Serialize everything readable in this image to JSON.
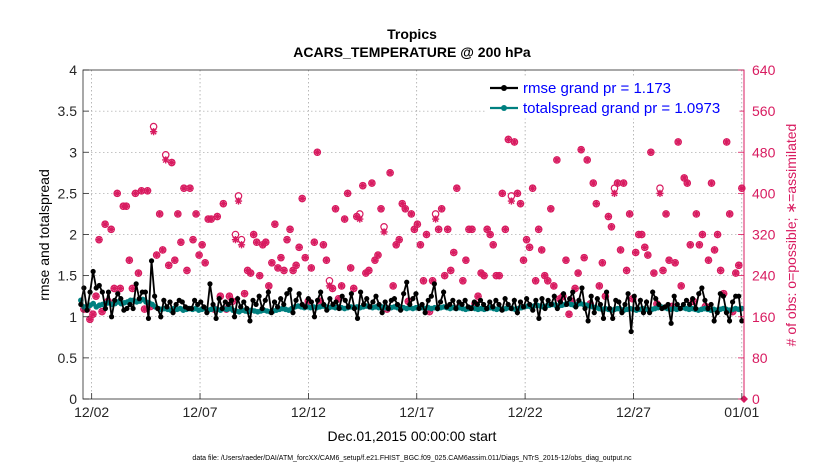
{
  "chart_data": {
    "type": "line",
    "title": "Tropics",
    "subtitle": "ACARS_TEMPERATURE @ 200 hPa",
    "xlabel": "Dec.01,2015 00:00:00 start",
    "ylabel": "rmse and totalspread",
    "y2label": "# of obs: o=possible; ∗=assimilated",
    "footer": "data file: /Users/raeder/DAI/ATM_forcXX/CAM6_setup/f.e21.FHIST_BGC.f09_025.CAM6assim.011/Diags_NTrS_2015-12/obs_diag_output.nc",
    "x_unit": "days since Dec.01,2015 00:00",
    "xlim": [
      0.6,
      31.1
    ],
    "ylim": [
      0,
      4
    ],
    "y2lim": [
      0,
      640
    ],
    "xticks": [
      1,
      6,
      11,
      16,
      21,
      26,
      31
    ],
    "xtick_labels": [
      "12/02",
      "12/07",
      "12/12",
      "12/17",
      "12/22",
      "12/27",
      "01/01"
    ],
    "yticks": [
      "0",
      "0.5",
      "1",
      "1.5",
      "2",
      "2.5",
      "3",
      "3.5",
      "4"
    ],
    "y2ticks": [
      "0",
      "80",
      "160",
      "240",
      "320",
      "400",
      "480",
      "560",
      "640"
    ],
    "legend_placement": "top-right",
    "legend": [
      "rmse grand pr = 1.173",
      "totalspread grand pr = 1.0973"
    ],
    "colors": {
      "rmse": "#000000",
      "spread": "#008080",
      "obs": "#d81b60",
      "axis2": "#d81b60"
    },
    "series_rmse": [
      1.15,
      1.35,
      1.08,
      1.3,
      1.55,
      1.35,
      1.38,
      1.3,
      1.1,
      1.3,
      1.0,
      1.2,
      1.28,
      1.22,
      1.08,
      1.1,
      1.15,
      1.1,
      1.4,
      1.22,
      1.3,
      1.3,
      0.98,
      1.68,
      1.25,
      1.1,
      1.0,
      1.2,
      1.12,
      1.18,
      1.05,
      1.15,
      1.2,
      1.18,
      1.12,
      1.1,
      1.1,
      1.2,
      1.15,
      1.18,
      1.12,
      1.05,
      1.4,
      1.15,
      0.98,
      1.22,
      1.1,
      1.18,
      1.15,
      1.2,
      1.0,
      1.22,
      1.12,
      1.18,
      1.1,
      0.95,
      1.2,
      1.15,
      1.25,
      1.1,
      1.2,
      1.3,
      1.05,
      1.18,
      1.12,
      1.22,
      1.15,
      1.28,
      1.33,
      1.05,
      1.2,
      1.28,
      1.15,
      1.12,
      1.22,
      1.18,
      1.0,
      1.2,
      1.3,
      1.15,
      1.08,
      1.22,
      1.15,
      1.18,
      1.1,
      1.25,
      1.2,
      1.12,
      1.28,
      1.1,
      0.98,
      1.3,
      1.15,
      1.22,
      1.12,
      1.18,
      1.25,
      1.15,
      1.05,
      1.18,
      1.1,
      1.2,
      1.22,
      1.15,
      1.08,
      1.28,
      1.42,
      1.15,
      1.22,
      1.28,
      1.1,
      1.15,
      1.05,
      1.2,
      1.25,
      1.4,
      1.1,
      1.18,
      1.3,
      1.12,
      1.15,
      1.2,
      1.1,
      1.18,
      1.15,
      1.2,
      1.12,
      1.1,
      1.18,
      1.15,
      1.2,
      1.15,
      1.1,
      1.18,
      1.12,
      1.2,
      1.15,
      1.08,
      1.22,
      1.15,
      1.1,
      1.2,
      1.05,
      1.18,
      1.12,
      1.22,
      1.15,
      1.08,
      1.2,
      0.98,
      1.22,
      1.1,
      1.2,
      1.15,
      1.25,
      1.1,
      1.18,
      1.28,
      1.15,
      1.22,
      1.3,
      1.12,
      1.2,
      1.35,
      1.1,
      0.95,
      1.25,
      1.05,
      1.22,
      1.15,
      0.98,
      1.3,
      1.1,
      0.98,
      1.2,
      1.18,
      1.05,
      1.15,
      1.28,
      0.82,
      1.25,
      1.1,
      1.2,
      1.05,
      1.18,
      1.05,
      1.3,
      1.22,
      1.15,
      1.1,
      1.12,
      1.15,
      0.92,
      1.25,
      1.15,
      1.1,
      1.15,
      1.2,
      1.15,
      1.22,
      1.1,
      1.28,
      1.35,
      1.2,
      1.1,
      1.15,
      0.95,
      1.05,
      1.28,
      1.25,
      1.05,
      0.95,
      1.18,
      1.25,
      1.25,
      0.95
    ],
    "series_spread": [
      1.2,
      1.12,
      1.1,
      1.14,
      1.16,
      1.12,
      1.14,
      1.15,
      1.16,
      1.17,
      1.15,
      1.16,
      1.18,
      1.16,
      1.17,
      1.18,
      1.2,
      1.2,
      1.18,
      1.19,
      1.21,
      1.18,
      1.17,
      1.15,
      1.12,
      1.1,
      1.09,
      1.1,
      1.09,
      1.08,
      1.1,
      1.09,
      1.1,
      1.08,
      1.09,
      1.1,
      1.09,
      1.1,
      1.08,
      1.09,
      1.1,
      1.08,
      1.09,
      1.1,
      1.09,
      1.08,
      1.1,
      1.09,
      1.1,
      1.08,
      1.07,
      1.06,
      1.08,
      1.07,
      1.06,
      1.08,
      1.07,
      1.06,
      1.07,
      1.08,
      1.07,
      1.06,
      1.07,
      1.08,
      1.09,
      1.1,
      1.09,
      1.08,
      1.1,
      1.12,
      1.13,
      1.12,
      1.11,
      1.12,
      1.11,
      1.12,
      1.11,
      1.12,
      1.13,
      1.12,
      1.11,
      1.12,
      1.11,
      1.12,
      1.11,
      1.1,
      1.11,
      1.12,
      1.11,
      1.12,
      1.11,
      1.12,
      1.13,
      1.12,
      1.11,
      1.12,
      1.11,
      1.12,
      1.11,
      1.1,
      1.11,
      1.12,
      1.11,
      1.12,
      1.11,
      1.1,
      1.11,
      1.1,
      1.11,
      1.12,
      1.11,
      1.1,
      1.11,
      1.1,
      1.11,
      1.1,
      1.11,
      1.12,
      1.11,
      1.1,
      1.11,
      1.1,
      1.11,
      1.1,
      1.09,
      1.1,
      1.11,
      1.1,
      1.09,
      1.1,
      1.09,
      1.1,
      1.11,
      1.1,
      1.09,
      1.1,
      1.09,
      1.1,
      1.11,
      1.1,
      1.09,
      1.1,
      1.11,
      1.12,
      1.13,
      1.12,
      1.13,
      1.14,
      1.13,
      1.12,
      1.13,
      1.14,
      1.15,
      1.14,
      1.13,
      1.14,
      1.15,
      1.16,
      1.15,
      1.14,
      1.15,
      1.16,
      1.15,
      1.14,
      1.13,
      1.12,
      1.11,
      1.1,
      1.09,
      1.1,
      1.09,
      1.08,
      1.09,
      1.1,
      1.09,
      1.08,
      1.09,
      1.1,
      1.09,
      1.08,
      1.09,
      1.1,
      1.09,
      1.08,
      1.09,
      1.1,
      1.11,
      1.12,
      1.11,
      1.1,
      1.09,
      1.1,
      1.09,
      1.1,
      1.11,
      1.1,
      1.09,
      1.1,
      1.09,
      1.08,
      1.09,
      1.1,
      1.09,
      1.08,
      1.09,
      1.08,
      1.09,
      1.1,
      1.09,
      1.08,
      1.09,
      1.1,
      1.09,
      1.1
    ],
    "obs_possible": [
      430,
      175,
      175,
      155,
      165,
      200,
      310,
      170,
      340,
      190,
      330,
      215,
      400,
      215,
      375,
      375,
      270,
      215,
      400,
      245,
      405,
      175,
      405,
      180,
      530,
      280,
      360,
      290,
      475,
      260,
      460,
      270,
      360,
      305,
      410,
      250,
      410,
      310,
      360,
      280,
      300,
      265,
      350,
      350,
      175,
      355,
      200,
      380,
      175,
      200,
      190,
      320,
      395,
      310,
      205,
      250,
      245,
      320,
      305,
      240,
      300,
      305,
      220,
      265,
      340,
      255,
      275,
      250,
      310,
      330,
      250,
      260,
      295,
      390,
      275,
      190,
      255,
      305,
      480,
      190,
      300,
      270,
      230,
      215,
      370,
      195,
      220,
      350,
      400,
      255,
      215,
      355,
      360,
      415,
      245,
      250,
      420,
      270,
      280,
      370,
      335,
      175,
      440,
      220,
      300,
      310,
      380,
      370,
      190,
      360,
      330,
      340,
      300,
      230,
      320,
      170,
      230,
      360,
      330,
      370,
      240,
      330,
      250,
      285,
      410,
      180,
      230,
      270,
      330,
      330,
      185,
      200,
      245,
      240,
      330,
      320,
      300,
      240,
      240,
      400,
      330,
      505,
      395,
      500,
      400,
      380,
      270,
      310,
      295,
      410,
      230,
      330,
      290,
      240,
      230,
      370,
      220,
      465,
      195,
      200,
      270,
      165,
      190,
      215,
      245,
      485,
      275,
      465,
      185,
      420,
      380,
      220,
      265,
      200,
      355,
      335,
      410,
      420,
      290,
      420,
      250,
      360,
      195,
      285,
      320,
      320,
      295,
      280,
      480,
      245,
      185,
      410,
      250,
      360,
      270,
      180,
      265,
      500,
      220,
      430,
      420,
      300,
      190,
      360,
      300,
      320,
      180,
      270,
      420,
      290,
      320,
      250,
      205,
      500,
      360,
      170,
      245,
      260,
      410
    ],
    "obs_assimilated": [
      430,
      175,
      175,
      155,
      165,
      200,
      310,
      170,
      340,
      190,
      330,
      215,
      400,
      215,
      375,
      375,
      270,
      215,
      400,
      245,
      405,
      175,
      405,
      180,
      520,
      280,
      360,
      290,
      465,
      260,
      460,
      270,
      360,
      305,
      410,
      250,
      410,
      310,
      360,
      280,
      300,
      265,
      350,
      350,
      175,
      355,
      200,
      380,
      175,
      200,
      190,
      310,
      385,
      300,
      205,
      250,
      245,
      320,
      305,
      240,
      300,
      305,
      220,
      265,
      340,
      255,
      275,
      250,
      310,
      330,
      250,
      260,
      295,
      390,
      275,
      190,
      255,
      305,
      480,
      190,
      300,
      270,
      220,
      215,
      370,
      195,
      220,
      350,
      400,
      255,
      215,
      355,
      350,
      415,
      245,
      250,
      420,
      270,
      280,
      370,
      325,
      175,
      440,
      220,
      300,
      310,
      380,
      370,
      190,
      360,
      330,
      340,
      300,
      230,
      320,
      170,
      230,
      350,
      330,
      370,
      240,
      330,
      250,
      285,
      410,
      180,
      230,
      270,
      330,
      330,
      185,
      200,
      245,
      240,
      330,
      320,
      300,
      240,
      240,
      400,
      330,
      505,
      385,
      500,
      400,
      380,
      270,
      310,
      295,
      410,
      230,
      330,
      290,
      240,
      230,
      370,
      220,
      465,
      195,
      200,
      270,
      165,
      190,
      215,
      245,
      485,
      275,
      465,
      185,
      420,
      380,
      220,
      265,
      200,
      355,
      335,
      400,
      420,
      290,
      420,
      250,
      360,
      195,
      285,
      320,
      320,
      295,
      280,
      480,
      245,
      185,
      400,
      250,
      360,
      270,
      180,
      265,
      500,
      220,
      430,
      420,
      300,
      190,
      360,
      300,
      320,
      180,
      270,
      420,
      290,
      320,
      250,
      205,
      500,
      360,
      170,
      245,
      260,
      410
    ]
  }
}
